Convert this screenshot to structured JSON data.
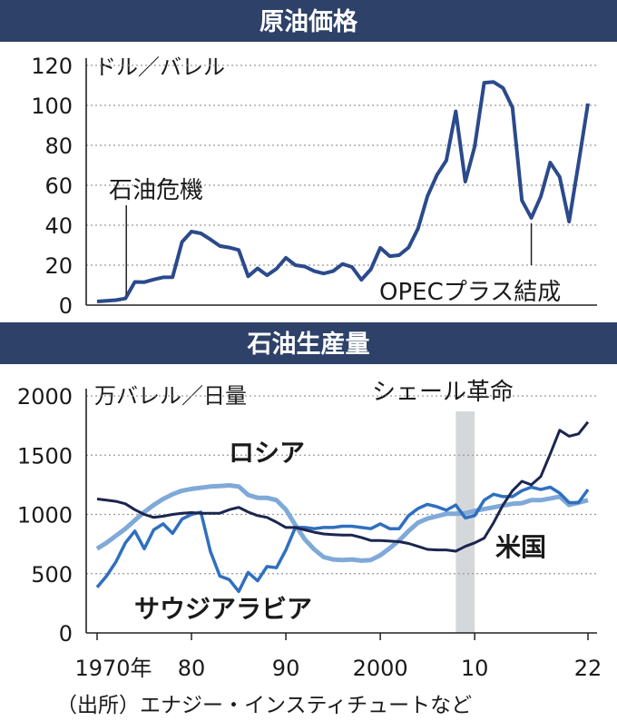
{
  "colors": {
    "header_bg": "#2e4168",
    "oil_price_line": "#2b4a8c",
    "russia_line": "#7fa9d8",
    "saudi_line": "#2f6fbf",
    "us_line": "#1c2550",
    "shale_band": "#d5d8da",
    "grid": "#9a9a9a"
  },
  "chart_data": [
    {
      "type": "line",
      "title": "原油価格",
      "ylabel": "ドル／バレル",
      "ylim": [
        0,
        120
      ],
      "yticks": [
        0,
        20,
        40,
        60,
        80,
        100,
        120
      ],
      "xlim": [
        1970,
        2022
      ],
      "grid": true,
      "series": [
        {
          "x": [
            1970,
            1971,
            1972,
            1973,
            1974,
            1975,
            1976,
            1977,
            1978,
            1979,
            1980,
            1981,
            1982,
            1983,
            1984,
            1985,
            1986,
            1987,
            1988,
            1989,
            1990,
            1991,
            1992,
            1993,
            1994,
            1995,
            1996,
            1997,
            1998,
            1999,
            2000,
            2001,
            2002,
            2003,
            2004,
            2005,
            2006,
            2007,
            2008,
            2009,
            2010,
            2011,
            2012,
            2013,
            2014,
            2015,
            2016,
            2017,
            2018,
            2019,
            2020,
            2021,
            2022
          ],
          "values": [
            1.8,
            2.2,
            2.5,
            3.3,
            11.6,
            11.5,
            12.8,
            13.9,
            14.0,
            31.6,
            36.8,
            35.9,
            32.9,
            29.6,
            28.8,
            27.6,
            14.4,
            18.4,
            14.9,
            18.2,
            23.7,
            20.0,
            19.3,
            17.0,
            15.8,
            17.0,
            20.6,
            19.1,
            12.7,
            17.9,
            28.7,
            24.5,
            25.0,
            28.8,
            38.3,
            54.5,
            65.1,
            72.4,
            97.0,
            61.8,
            79.5,
            111.3,
            111.7,
            108.7,
            98.9,
            52.4,
            43.7,
            54.3,
            71.3,
            64.2,
            41.8,
            70.9,
            100.9
          ]
        }
      ],
      "annotations": [
        {
          "text": "石油危機",
          "x": 1973
        },
        {
          "text": "OPECプラス結成",
          "x": 2016
        }
      ]
    },
    {
      "type": "line",
      "title": "石油生産量",
      "ylabel": "万バレル／日量",
      "ylim": [
        0,
        2000
      ],
      "yticks": [
        0,
        500,
        1000,
        1500,
        2000
      ],
      "xlim": [
        1970,
        2022
      ],
      "xticks": [
        "1970年",
        "80",
        "90",
        "2000",
        "10",
        "22"
      ],
      "xtick_values": [
        1970,
        1980,
        1990,
        2000,
        2010,
        2022
      ],
      "grid": true,
      "shaded_period": {
        "label": "シェール革命",
        "x0": 2008,
        "x1": 2010
      },
      "series": [
        {
          "name": "ロシア",
          "x": [
            1970,
            1971,
            1972,
            1973,
            1974,
            1975,
            1976,
            1977,
            1978,
            1979,
            1980,
            1981,
            1982,
            1983,
            1984,
            1985,
            1986,
            1987,
            1988,
            1989,
            1990,
            1991,
            1992,
            1993,
            1994,
            1995,
            1996,
            1997,
            1998,
            1999,
            2000,
            2001,
            2002,
            2003,
            2004,
            2005,
            2006,
            2007,
            2008,
            2009,
            2010,
            2011,
            2012,
            2013,
            2014,
            2015,
            2016,
            2017,
            2018,
            2019,
            2020,
            2021,
            2022
          ],
          "values": [
            710,
            760,
            820,
            880,
            950,
            1020,
            1080,
            1130,
            1170,
            1200,
            1215,
            1225,
            1235,
            1240,
            1245,
            1235,
            1165,
            1140,
            1140,
            1120,
            1040,
            910,
            790,
            705,
            640,
            620,
            615,
            620,
            610,
            615,
            655,
            715,
            780,
            860,
            930,
            965,
            985,
            1005,
            1005,
            1010,
            1030,
            1045,
            1060,
            1075,
            1090,
            1095,
            1120,
            1120,
            1135,
            1150,
            1080,
            1100,
            1120
          ]
        },
        {
          "name": "サウジアラビア",
          "x": [
            1970,
            1971,
            1972,
            1973,
            1974,
            1975,
            1976,
            1977,
            1978,
            1979,
            1980,
            1981,
            1982,
            1983,
            1984,
            1985,
            1986,
            1987,
            1988,
            1989,
            1990,
            1991,
            1992,
            1993,
            1994,
            1995,
            1996,
            1997,
            1998,
            1999,
            2000,
            2001,
            2002,
            2003,
            2004,
            2005,
            2006,
            2007,
            2008,
            2009,
            2010,
            2011,
            2012,
            2013,
            2014,
            2015,
            2016,
            2017,
            2018,
            2019,
            2020,
            2021,
            2022
          ],
          "values": [
            385,
            480,
            600,
            760,
            860,
            710,
            870,
            920,
            840,
            960,
            1000,
            1020,
            690,
            480,
            450,
            350,
            510,
            440,
            560,
            550,
            700,
            890,
            890,
            880,
            890,
            890,
            900,
            900,
            890,
            880,
            920,
            880,
            880,
            990,
            1050,
            1085,
            1065,
            1035,
            1080,
            970,
            990,
            1120,
            1170,
            1150,
            1150,
            1200,
            1230,
            1210,
            1230,
            1180,
            1100,
            1100,
            1210
          ]
        },
        {
          "name": "米国",
          "x": [
            1970,
            1971,
            1972,
            1973,
            1974,
            1975,
            1976,
            1977,
            1978,
            1979,
            1980,
            1981,
            1982,
            1983,
            1984,
            1985,
            1986,
            1987,
            1988,
            1989,
            1990,
            1991,
            1992,
            1993,
            1994,
            1995,
            1996,
            1997,
            1998,
            1999,
            2000,
            2001,
            2002,
            2003,
            2004,
            2005,
            2006,
            2007,
            2008,
            2009,
            2010,
            2011,
            2012,
            2013,
            2014,
            2015,
            2016,
            2017,
            2018,
            2019,
            2020,
            2021,
            2022
          ],
          "values": [
            1130,
            1120,
            1110,
            1090,
            1040,
            1000,
            975,
            985,
            1000,
            1010,
            1015,
            1010,
            1010,
            1010,
            1040,
            1060,
            1020,
            990,
            975,
            935,
            890,
            890,
            870,
            850,
            835,
            830,
            825,
            825,
            805,
            780,
            780,
            775,
            770,
            755,
            730,
            705,
            700,
            700,
            690,
            730,
            760,
            800,
            930,
            1080,
            1200,
            1280,
            1250,
            1320,
            1510,
            1710,
            1660,
            1680,
            1780
          ]
        }
      ]
    }
  ],
  "source_note": "（出所）エナジー・インスティチュートなど"
}
